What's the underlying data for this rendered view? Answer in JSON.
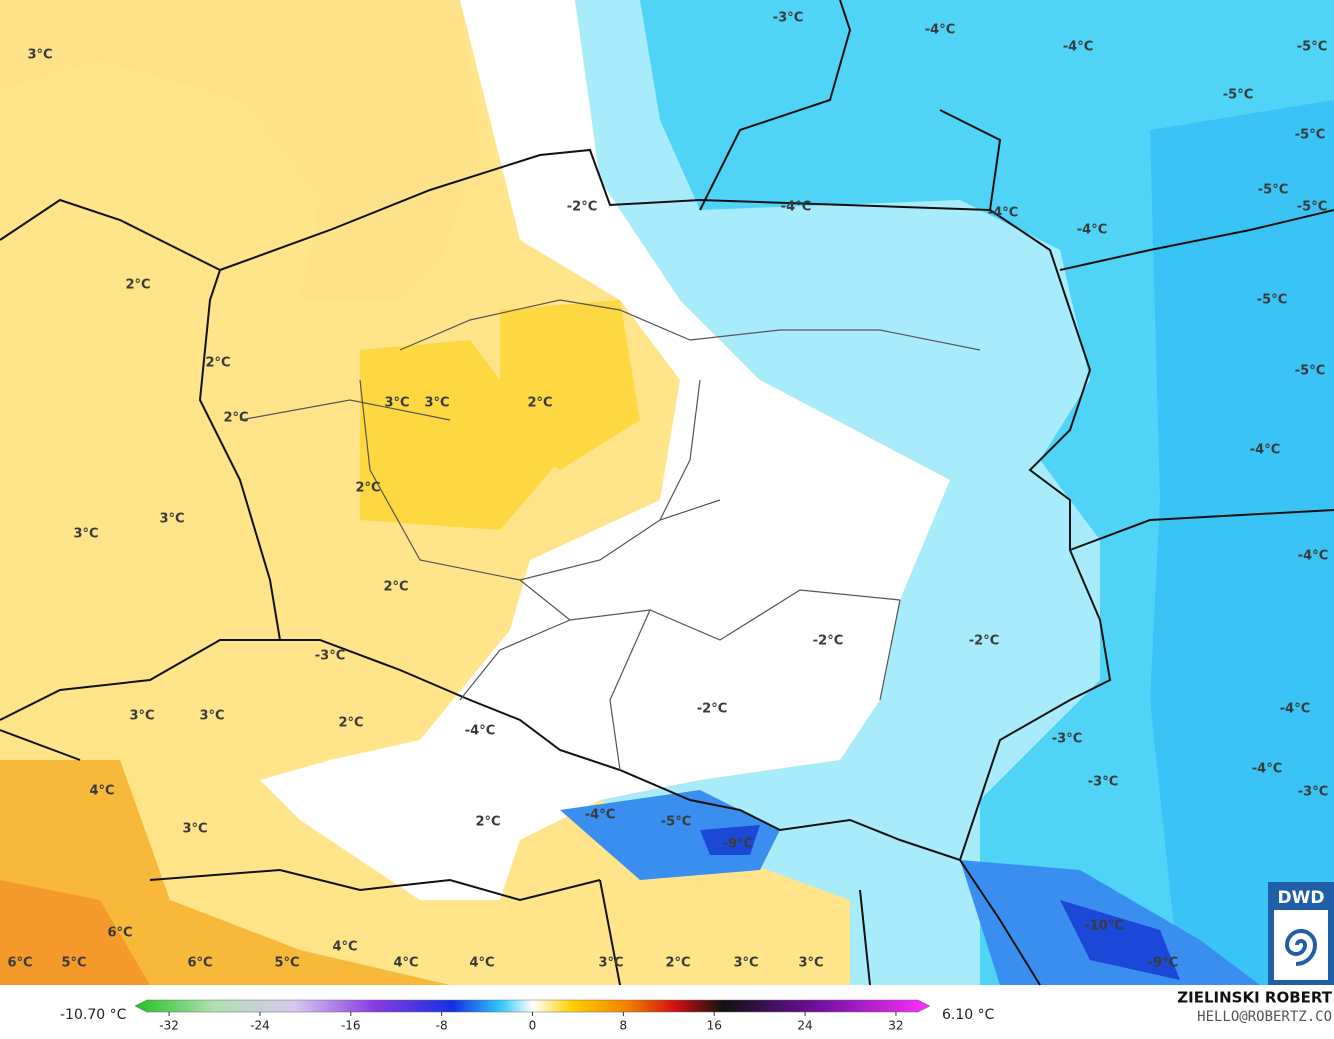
{
  "map": {
    "labels": [
      "3°C",
      "-3°C",
      "-4°C",
      "-4°C",
      "-5°C",
      "-5°C",
      "-5°C",
      "-5°C",
      "-5°C",
      "-2°C",
      "-4°C",
      "-4°C",
      "-4°C",
      "-5°C",
      "2°C",
      "2°C",
      "-5°C",
      "3°C",
      "3°C",
      "2°C",
      "2°C",
      "-4°C",
      "2°C",
      "3°C",
      "3°C",
      "-4°C",
      "2°C",
      "-2°C",
      "-2°C",
      "-3°C",
      "3°C",
      "3°C",
      "2°C",
      "-2°C",
      "-4°C",
      "-4°C",
      "-3°C",
      "-4°C",
      "4°C",
      "-3°C",
      "-3°C",
      "-4°C",
      "-5°C",
      "3°C",
      "2°C",
      "-9°C",
      "6°C",
      "4°C",
      "-10°C",
      "6°C",
      "5°C",
      "6°C",
      "5°C",
      "4°C",
      "4°C",
      "3°C",
      "2°C",
      "3°C",
      "3°C",
      "-9°C"
    ]
  },
  "colorbar": {
    "min_label": "-10.70 °C",
    "max_label": "6.10 °C",
    "lim": [
      -35,
      35
    ],
    "ticks": [
      -32,
      -24,
      -16,
      -8,
      0,
      8,
      16,
      24,
      32
    ]
  },
  "credit": {
    "name": "ZIELINSKI ROBERT",
    "email": "HELLO@ROBERTZ.CO"
  },
  "logo": {
    "text": "DWD"
  }
}
